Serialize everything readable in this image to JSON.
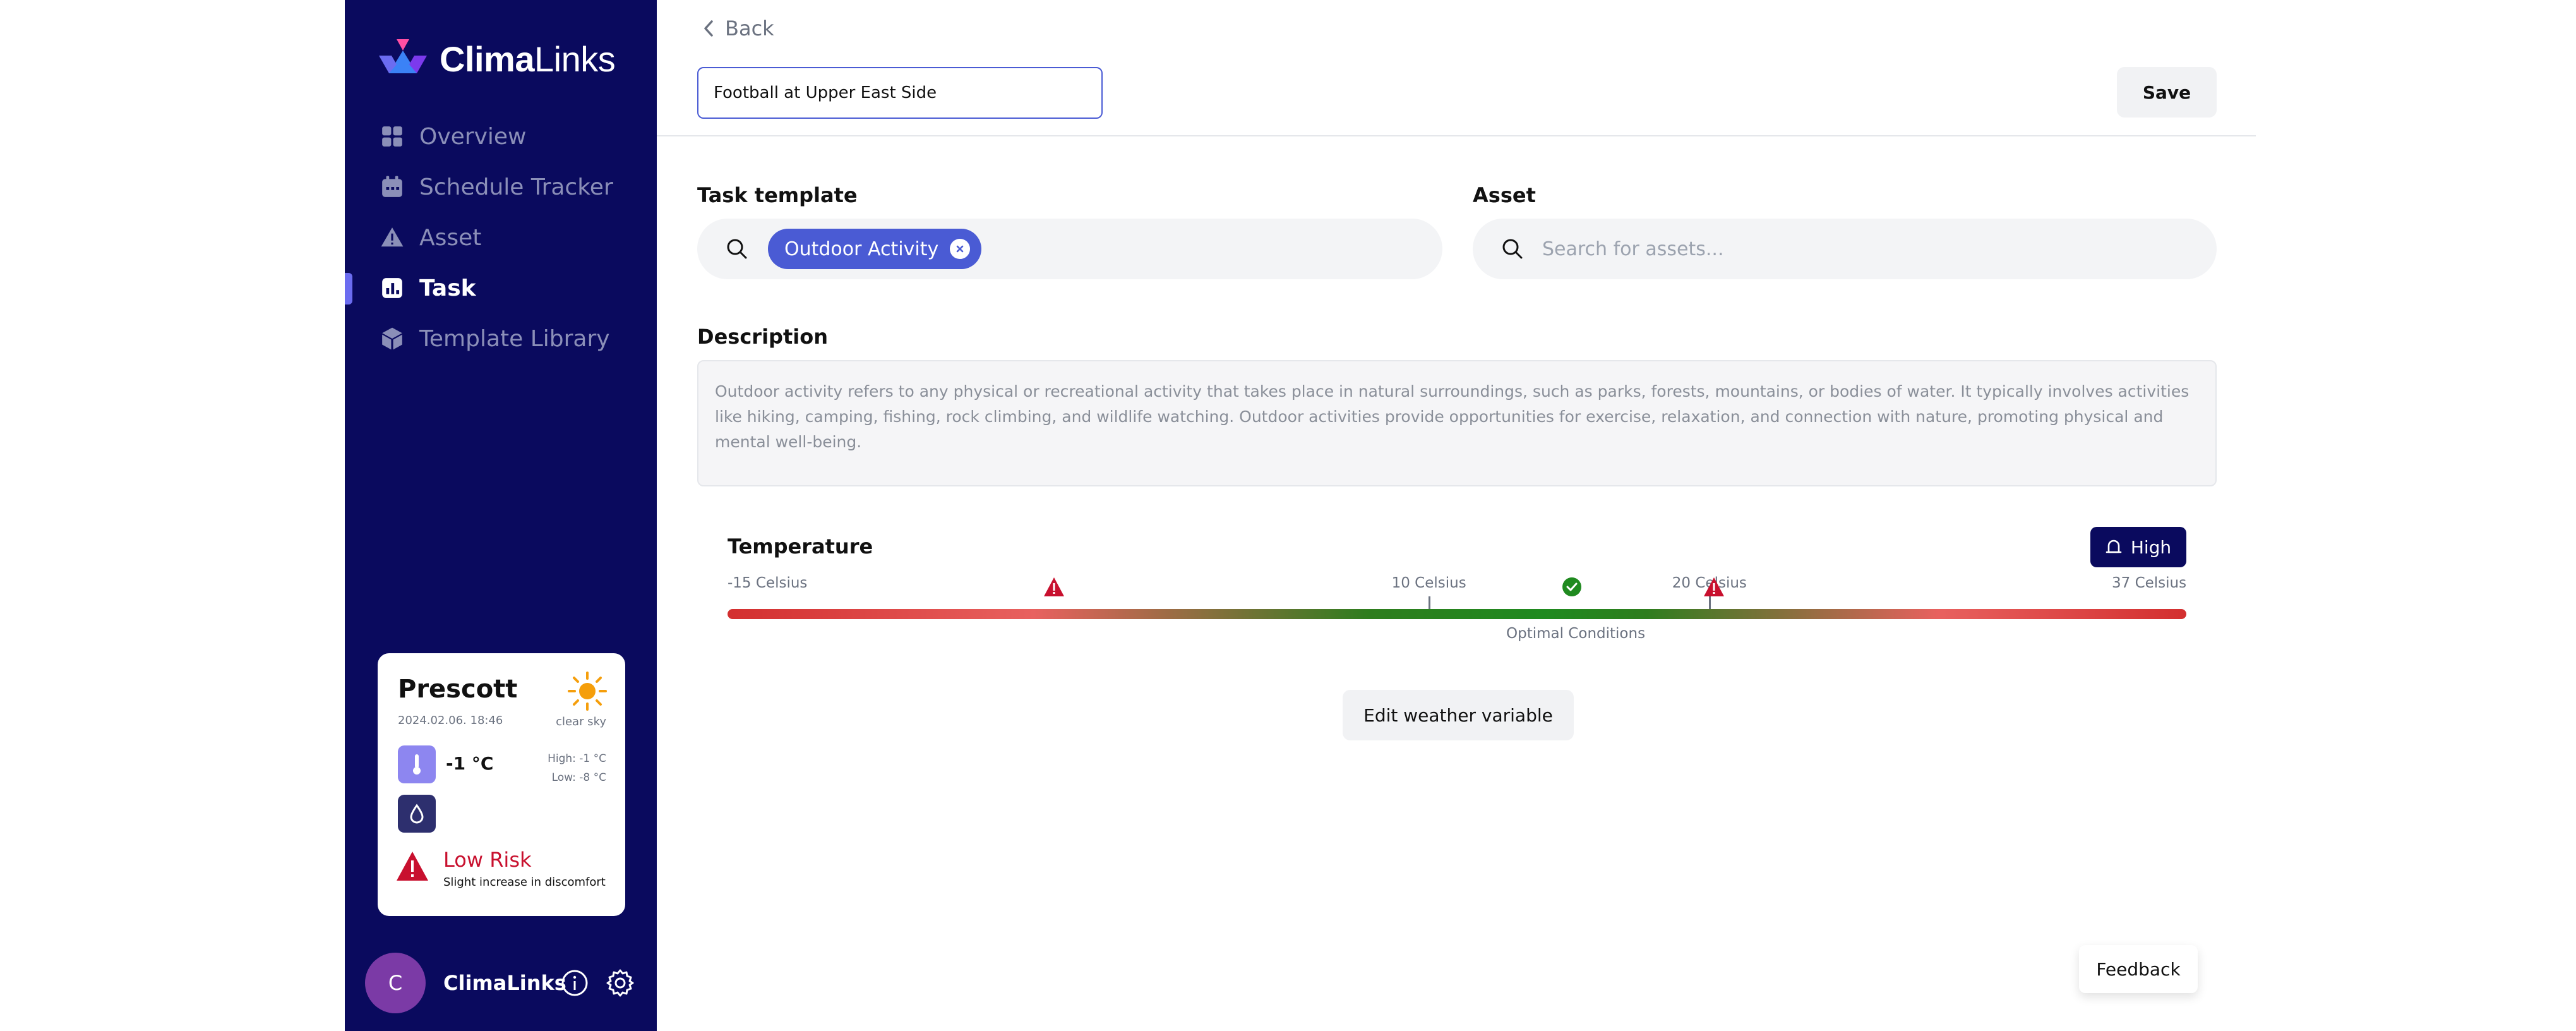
{
  "app": {
    "brand_bold": "Clima",
    "brand_light": "Links"
  },
  "sidebar": {
    "items": [
      {
        "label": "Overview",
        "icon": "grid-icon"
      },
      {
        "label": "Schedule Tracker",
        "icon": "calendar-icon"
      },
      {
        "label": "Asset",
        "icon": "warning-icon"
      },
      {
        "label": "Task",
        "icon": "chart-icon",
        "active": true
      },
      {
        "label": "Template Library",
        "icon": "cube-icon"
      }
    ]
  },
  "weather": {
    "city": "Prescott",
    "date": "2024.02.06. 18:46",
    "condition": "clear sky",
    "temp": "-1 °C",
    "high": "High: -1 °C",
    "low": "Low: -8 °C",
    "risk": "Low Risk",
    "risk_detail": "Slight increase in discomfort"
  },
  "user": {
    "initial": "C",
    "name": "ClimaLinks"
  },
  "header": {
    "back_label": "Back",
    "title_value": "Football at Upper East Side",
    "save_label": "Save"
  },
  "form": {
    "task_template_label": "Task template",
    "task_template_chip": "Outdoor Activity",
    "asset_label": "Asset",
    "asset_placeholder": "Search for assets...",
    "description_label": "Description",
    "description_text": "Outdoor activity refers to any physical or recreational activity that takes place in natural surroundings, such as parks, forests, mountains, or bodies of water. It typically involves activities like hiking, camping, fishing, rock climbing, and wildlife watching. Outdoor activities provide opportunities for exercise, relaxation, and connection with nature, promoting physical and mental well-being."
  },
  "temperature": {
    "title": "Temperature",
    "priority": "High",
    "min_label": "-15 Celsius",
    "optimal_low_label": "10 Celsius",
    "optimal_high_label": "20 Celsius",
    "max_label": "37 Celsius",
    "optimal_caption": "Optimal Conditions",
    "min": -15,
    "optimal_low": 10,
    "optimal_high": 20,
    "max": 37
  },
  "actions": {
    "edit_weather_label": "Edit weather variable",
    "feedback_label": "Feedback"
  },
  "colors": {
    "sidebar_bg": "#0a0a5e",
    "accent": "#4a5bd4",
    "risk": "#c8102e",
    "ok": "#1f8a1f"
  }
}
